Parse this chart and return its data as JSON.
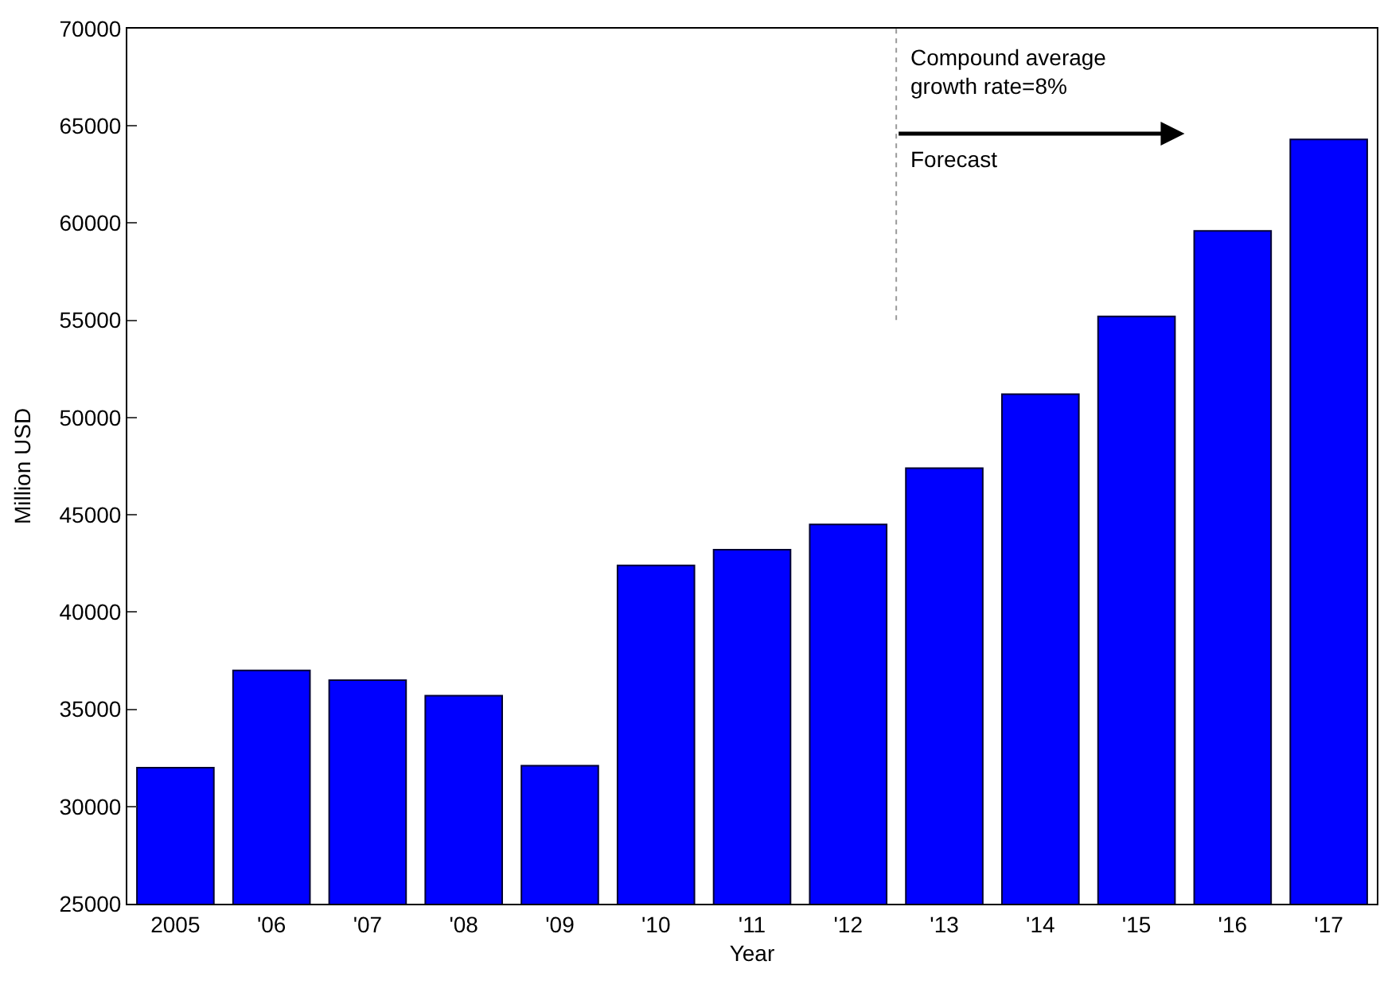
{
  "chart_data": {
    "type": "bar",
    "xlabel": "Year",
    "ylabel": "Million USD",
    "categories": [
      "2005",
      "'06",
      "'07",
      "'08",
      "'09",
      "'10",
      "'11",
      "'12",
      "'13",
      "'14",
      "'15",
      "'16",
      "'17"
    ],
    "values": [
      32000,
      37000,
      36500,
      35700,
      32100,
      42400,
      43200,
      44500,
      47400,
      51200,
      55200,
      59600,
      64300
    ],
    "color": "#0000ff",
    "ylim": [
      25000,
      70000
    ],
    "yticks": [
      25000,
      30000,
      35000,
      40000,
      45000,
      50000,
      55000,
      60000,
      65000,
      70000
    ],
    "annotations": [
      "Compound average\ngrowth rate=8%",
      "Forecast"
    ]
  }
}
